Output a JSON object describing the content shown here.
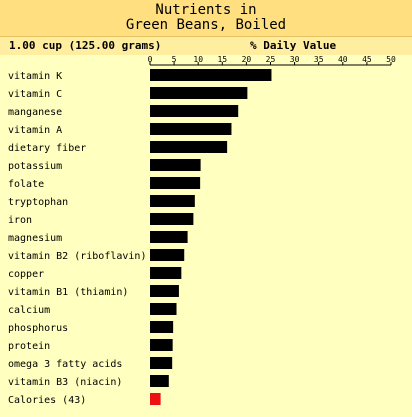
{
  "chart_data": {
    "type": "bar",
    "orientation": "horizontal",
    "title_lines": [
      "Nutrients in",
      "Green Beans, Boiled"
    ],
    "serving_size": "1.00 cup (125.00 grams)",
    "xlabel": "% Daily Value",
    "x_ticks": [
      "0",
      "5",
      "10",
      "15",
      "20",
      "25",
      "30",
      "35",
      "40",
      "45",
      "50"
    ],
    "xlim": [
      0,
      50
    ],
    "bar_color": "#000000",
    "calorie_color": "#EE1111",
    "categories": [
      "vitamin K",
      "vitamin C",
      "manganese",
      "vitamin A",
      "dietary fiber",
      "potassium",
      "folate",
      "tryptophan",
      "iron",
      "magnesium",
      "vitamin B2 (riboflavin)",
      "copper",
      "vitamin B1 (thiamin)",
      "calcium",
      "phosphorus",
      "protein",
      "omega 3 fatty acids",
      "vitamin B3 (niacin)",
      "Calories (43)"
    ],
    "values": [
      25.2,
      20.2,
      18.3,
      16.9,
      16.0,
      10.5,
      10.4,
      9.3,
      9.0,
      7.8,
      7.1,
      6.5,
      6.0,
      5.5,
      4.8,
      4.7,
      4.6,
      3.9,
      2.2
    ]
  }
}
